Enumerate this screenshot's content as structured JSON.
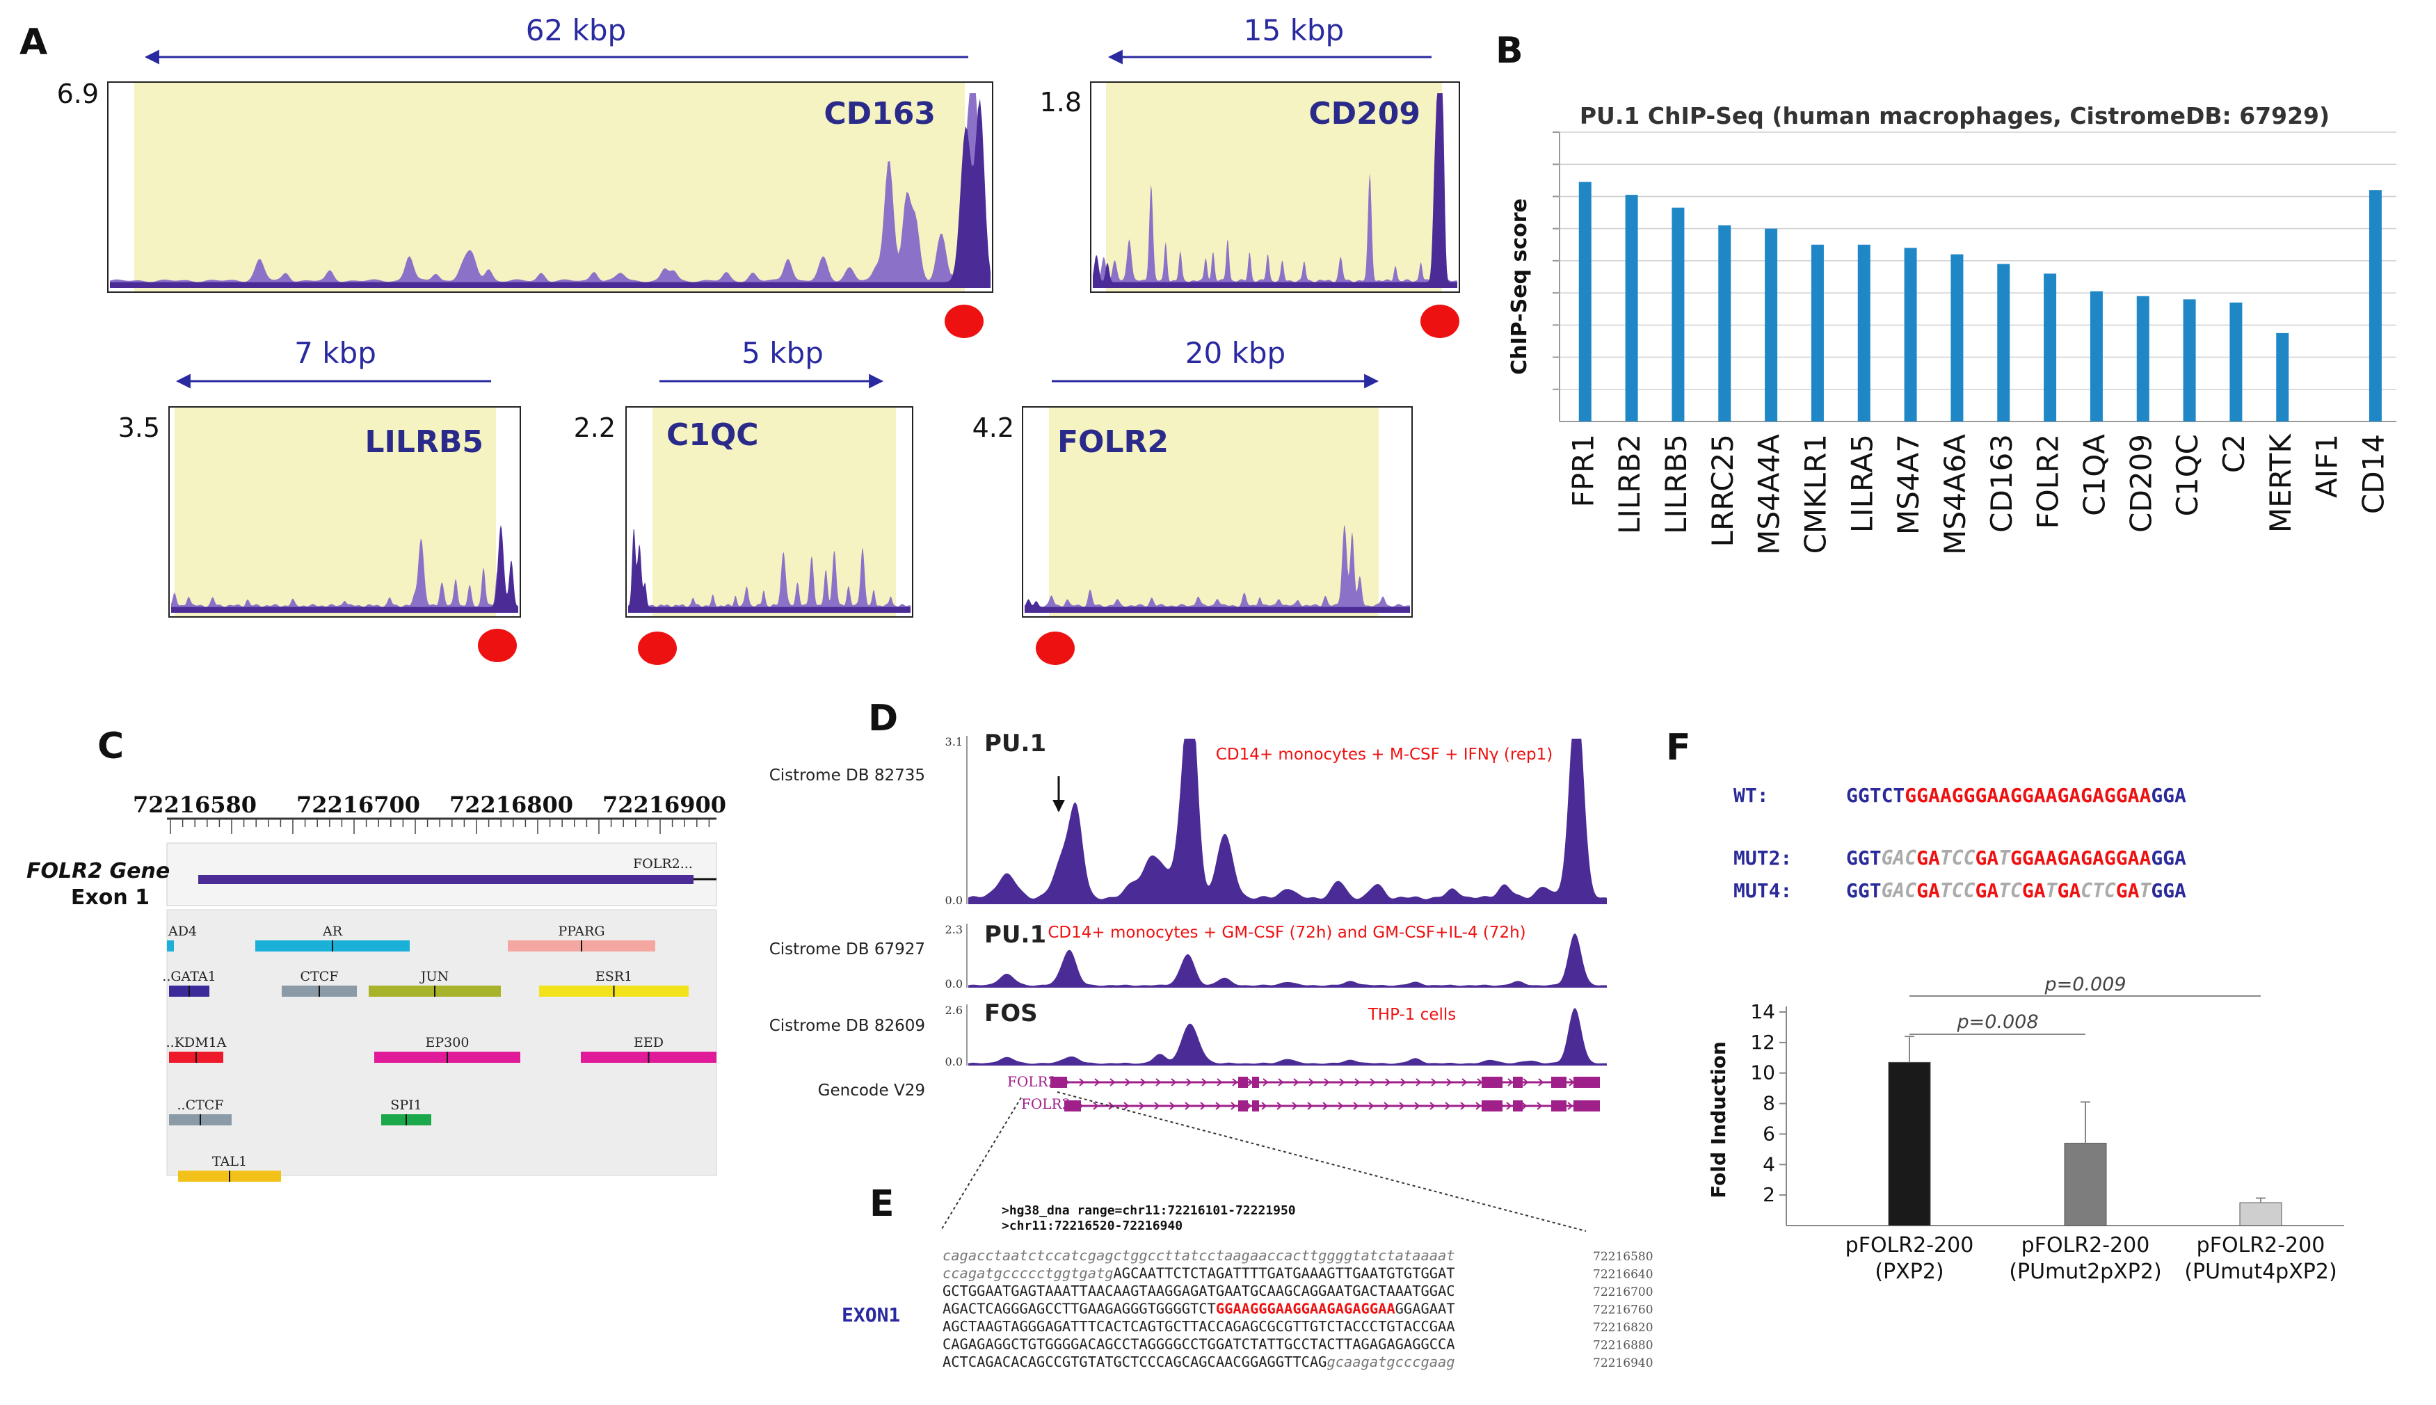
{
  "panels": {
    "A": "A",
    "B": "B",
    "C": "C",
    "D": "D",
    "E": "E",
    "F": "F"
  },
  "colors": {
    "track": "#4b2c97",
    "trackLight": "#8b72c8",
    "bg": "#f6f3c2",
    "dot": "#ee1111",
    "arrow": "#2a2aa0",
    "bar": "#1f87c6"
  },
  "panelA": {
    "loci": [
      {
        "gene": "CD163",
        "scale": "6.9",
        "span": "62 kbp",
        "direction": "left"
      },
      {
        "gene": "CD209",
        "scale": "1.8",
        "span": "15 kbp",
        "direction": "left"
      },
      {
        "gene": "LILRB5",
        "scale": "3.5",
        "span": "7 kbp",
        "direction": "left"
      },
      {
        "gene": "C1QC",
        "scale": "2.2",
        "span": "5 kbp",
        "direction": "right"
      },
      {
        "gene": "FOLR2",
        "scale": "4.2",
        "span": "20 kbp",
        "direction": "right"
      }
    ]
  },
  "chart_data": {
    "type": "bar",
    "title": "PU.1 ChIP-Seq (human macrophages, CistromeDB: 67929)",
    "ylabel": "ChIP-Seq score",
    "xlabel": "",
    "categories": [
      "FPR1",
      "LILRB2",
      "LILRB5",
      "LRRC25",
      "MS4A4A",
      "CMKLR1",
      "LILRA5",
      "MS4A7",
      "MS4A6A",
      "CD163",
      "FOLR2",
      "C1QA",
      "CD209",
      "C1QC",
      "C2",
      "MERTK",
      "AIF1",
      "CD14"
    ],
    "values": [
      7.45,
      7.05,
      6.65,
      6.1,
      6.0,
      5.5,
      5.5,
      5.4,
      5.2,
      4.9,
      4.6,
      4.05,
      3.9,
      3.8,
      3.7,
      2.75,
      0,
      7.2
    ],
    "ylim": [
      0,
      9
    ],
    "grid": true
  },
  "panelC": {
    "coords": [
      "72216580",
      "72216700",
      "72216800",
      "72216900"
    ],
    "gene_label": "FOLR2 Gene",
    "exon_label": "Exon 1",
    "exon_name": "FOLR2...",
    "tfs": [
      {
        "name": "AD4",
        "color": "#1ab0d8"
      },
      {
        "name": "AR",
        "color": "#1ab0d8"
      },
      {
        "name": "PPARG",
        "color": "#f4a6a0"
      },
      {
        "name": "GATA1",
        "color": "#3a2a9a"
      },
      {
        "name": "CTCF",
        "color": "#8a9aa6"
      },
      {
        "name": "JUN",
        "color": "#a8b22a"
      },
      {
        "name": "ESR1",
        "color": "#f2e21a"
      },
      {
        "name": "KDM1A",
        "color": "#ee1a2a"
      },
      {
        "name": "EP300",
        "color": "#e01a98"
      },
      {
        "name": "EED",
        "color": "#e01a98"
      },
      {
        "name": "CTCF",
        "color": "#8a9aa6"
      },
      {
        "name": "SPI1",
        "color": "#1aa84a"
      },
      {
        "name": "TAL1",
        "color": "#f2c21a"
      }
    ]
  },
  "panelD": {
    "tracks": [
      {
        "db": "Cistrome DB 82735",
        "factor": "PU.1",
        "condition": "CD14+ monocytes + M-CSF + IFNγ (rep1)",
        "ymax": "3.1",
        "ymin": "0.0"
      },
      {
        "db": "Cistrome DB 67927",
        "factor": "PU.1",
        "condition": "CD14+ monocytes + GM-CSF (72h) and GM-CSF+IL-4 (72h)",
        "ymax": "2.3",
        "ymin": "0.0"
      },
      {
        "db": "Cistrome DB 82609",
        "factor": "FOS",
        "condition": "THP-1 cells",
        "ymax": "2.6",
        "ymin": "0.0"
      }
    ],
    "gencode": "Gencode V29",
    "transcript1": "FOLR2",
    "transcript2": "FOLR2"
  },
  "panelE": {
    "header1": ">hg38_dna range=chr11:72216101-72221950",
    "header2": ">chr11:72216520-72216940",
    "exon_label": "EXON1",
    "lines": [
      {
        "seg": [
          {
            "t": "cagacctaatctccatcgagctggccttatcctaagaaccacttggggtatctataaaat",
            "k": "lo"
          }
        ],
        "pos": "72216580"
      },
      {
        "seg": [
          {
            "t": "ccagatgccccctggtgatg",
            "k": "lo"
          },
          {
            "t": "AGCAATTCTCTAGATTTTGATGAAAGTTGAATGTGTGGAT",
            "k": "up"
          }
        ],
        "pos": "72216640"
      },
      {
        "seg": [
          {
            "t": "GCTGGAATGAGTAAATTAACAAGTAAGGAGATGAATGCAAGCAGGAATGACTAAATGGAC",
            "k": "up"
          }
        ],
        "pos": "72216700"
      },
      {
        "seg": [
          {
            "t": "AGACTCAGGGAGCCTTGAAGAGGGTGGGGTCT",
            "k": "up"
          },
          {
            "t": "GGAAGGGAAGGAAGAGAGGAA",
            "k": "red"
          },
          {
            "t": "GGAGAAT",
            "k": "up"
          }
        ],
        "pos": "72216760"
      },
      {
        "seg": [
          {
            "t": "AGCTAAGTAGGGAGATTTCACTCAGTGCTTACCAGAGCGCGTTGTCTACCCTGTACCGAA",
            "k": "up"
          }
        ],
        "pos": "72216820"
      },
      {
        "seg": [
          {
            "t": "CAGAGAGGCTGTGGGGACAGCCTAGGGGCCTGGATCTATTGCCTACTTAGAGAGAGGCCA",
            "k": "up"
          }
        ],
        "pos": "72216880"
      },
      {
        "seg": [
          {
            "t": "ACTCAGACACAGCCGTGTATGCTCCCAGCAGCAACGGAGGTTCAG",
            "k": "up"
          },
          {
            "t": "gcaagatgcccgaag",
            "k": "lo"
          }
        ],
        "pos": "72216940"
      }
    ]
  },
  "panelF": {
    "seqs": [
      {
        "label": "WT:",
        "seg": [
          {
            "t": "GGTCT",
            "k": "b"
          },
          {
            "t": "GGAAGGGAAGGAAGAGAGGAA",
            "k": "r"
          },
          {
            "t": "GGA",
            "k": "b"
          }
        ]
      },
      {
        "label": "MUT2:",
        "seg": [
          {
            "t": "GGT",
            "k": "b"
          },
          {
            "t": "GAC",
            "k": "g"
          },
          {
            "t": "GA",
            "k": "r"
          },
          {
            "t": "TCC",
            "k": "g"
          },
          {
            "t": "GA",
            "k": "r"
          },
          {
            "t": "T",
            "k": "g"
          },
          {
            "t": "GGAAGAGAGGAA",
            "k": "r"
          },
          {
            "t": "GGA",
            "k": "b"
          }
        ]
      },
      {
        "label": "MUT4:",
        "seg": [
          {
            "t": "GGT",
            "k": "b"
          },
          {
            "t": "GAC",
            "k": "g"
          },
          {
            "t": "GA",
            "k": "r"
          },
          {
            "t": "TCC",
            "k": "g"
          },
          {
            "t": "GA",
            "k": "r"
          },
          {
            "t": "TC",
            "k": "g"
          },
          {
            "t": "GA",
            "k": "r"
          },
          {
            "t": "T",
            "k": "g"
          },
          {
            "t": "GA",
            "k": "r"
          },
          {
            "t": "CTC",
            "k": "g"
          },
          {
            "t": "GA",
            "k": "r"
          },
          {
            "t": "T",
            "k": "g"
          },
          {
            "t": "GGA",
            "k": "b"
          }
        ]
      }
    ],
    "chart": {
      "ylabel": "Fold Induction",
      "yticks": [
        "2",
        "4",
        "6",
        "8",
        "10",
        "12",
        "14"
      ],
      "ymax": 14,
      "bars": [
        {
          "label1": "pFOLR2-200",
          "label2": "(PXP2)",
          "value": 10.7,
          "error": 1.7,
          "color": "#1a1a1a"
        },
        {
          "label1": "pFOLR2-200",
          "label2": "(PUmut2pXP2)",
          "value": 5.4,
          "error": 2.7,
          "color": "#7d7d7d"
        },
        {
          "label1": "pFOLR2-200",
          "label2": "(PUmut4pXP2)",
          "value": 1.5,
          "error": 0.3,
          "color": "#cfcfcf"
        }
      ],
      "p1": "p=0.008",
      "p2": "p=0.009"
    }
  }
}
